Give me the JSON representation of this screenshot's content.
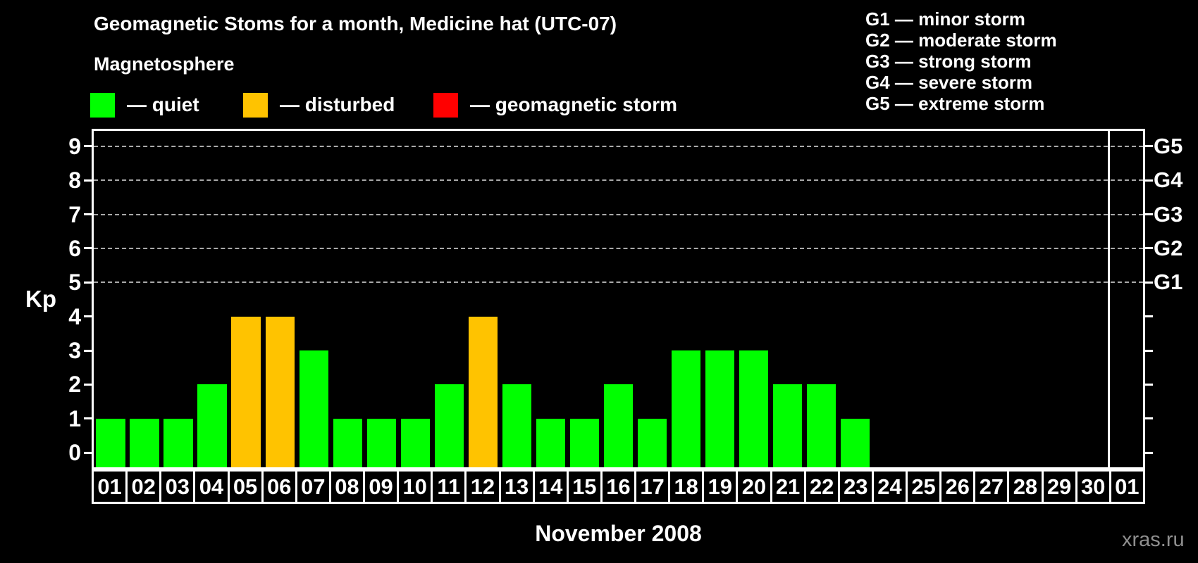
{
  "title": "Geomagnetic Stoms for a month, Medicine hat (UTC-07)",
  "magnetosphere_label": "Magnetosphere",
  "legend": {
    "items": [
      {
        "name": "quiet",
        "label": "— quiet",
        "color": "#00ff00"
      },
      {
        "name": "disturbed",
        "label": "— disturbed",
        "color": "#ffc300"
      },
      {
        "name": "storm",
        "label": "— geomagnetic storm",
        "color": "#ff0000"
      }
    ]
  },
  "g_scale_legend": [
    "G1 — minor storm",
    "G2 — moderate storm",
    "G3 — strong storm",
    "G4 — severe storm",
    "G5 — extreme storm"
  ],
  "watermark": "xras.ru",
  "chart_data": {
    "type": "bar",
    "title": "Geomagnetic Stoms for a month, Medicine hat (UTC-07)",
    "xlabel": "November 2008",
    "ylabel": "Kp",
    "ylim": [
      -0.43,
      9.45
    ],
    "grid": "dashed horizontal lines at Kp 5–9",
    "legend_position": "top",
    "categories": [
      "01",
      "02",
      "03",
      "04",
      "05",
      "06",
      "07",
      "08",
      "09",
      "10",
      "11",
      "12",
      "13",
      "14",
      "15",
      "16",
      "17",
      "18",
      "19",
      "20",
      "21",
      "22",
      "23",
      "24",
      "25",
      "26",
      "27",
      "28",
      "29",
      "30",
      "01"
    ],
    "values": [
      1,
      1,
      1,
      2,
      4,
      4,
      3,
      1,
      1,
      1,
      2,
      4,
      2,
      1,
      1,
      2,
      1,
      3,
      3,
      3,
      2,
      2,
      1,
      null,
      null,
      null,
      null,
      null,
      null,
      null,
      null
    ],
    "status": [
      "quiet",
      "quiet",
      "quiet",
      "quiet",
      "disturbed",
      "disturbed",
      "quiet",
      "quiet",
      "quiet",
      "quiet",
      "quiet",
      "disturbed",
      "quiet",
      "quiet",
      "quiet",
      "quiet",
      "quiet",
      "quiet",
      "quiet",
      "quiet",
      "quiet",
      "quiet",
      "quiet",
      null,
      null,
      null,
      null,
      null,
      null,
      null,
      null
    ],
    "status_colors": {
      "quiet": "#00ff00",
      "disturbed": "#ffc300",
      "storm": "#ff0000"
    },
    "yticks": [
      0,
      1,
      2,
      3,
      4,
      5,
      6,
      7,
      8,
      9
    ],
    "gridlines_kp": [
      5,
      6,
      7,
      8,
      9
    ],
    "right_axis": [
      {
        "kp": 5,
        "label": "G1"
      },
      {
        "kp": 6,
        "label": "G2"
      },
      {
        "kp": 7,
        "label": "G3"
      },
      {
        "kp": 8,
        "label": "G4"
      },
      {
        "kp": 9,
        "label": "G5"
      }
    ],
    "month_boundary_index": 30
  }
}
